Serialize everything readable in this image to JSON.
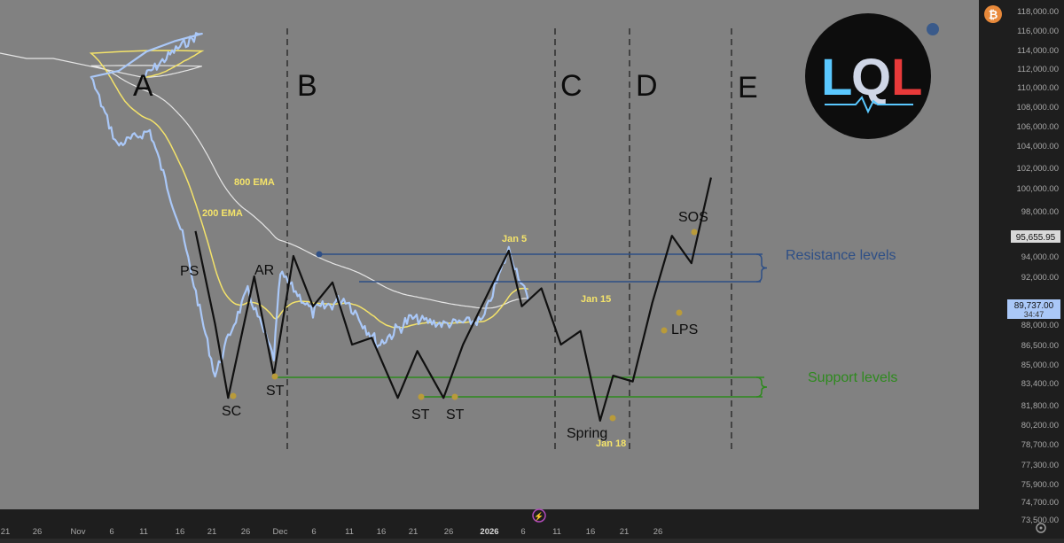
{
  "colors": {
    "background": "#818181",
    "price_line": "#aac8f8",
    "ema_200": "#f4e36a",
    "ema_800": "#e6e6e6",
    "schematic": "#101010",
    "resistance": "#2e4f86",
    "support": "#2e8a1e",
    "event_dot": "#b99b3a",
    "axis_bg": "#1e1e1e",
    "axis_text": "#a8a8a8",
    "logo_blue": "#5ac8ff",
    "logo_red": "#e83a3a"
  },
  "logo": {
    "text_left": "L",
    "text_mid": "Q",
    "text_right": "L"
  },
  "chart_data": {
    "type": "line",
    "y_axis": {
      "ticks": [
        "118,000.00",
        "116,000.00",
        "114,000.00",
        "112,000.00",
        "110,000.00",
        "108,000.00",
        "106,000.00",
        "104,000.00",
        "102,000.00",
        "100,000.00",
        "98,000.00",
        "96,000.00",
        "94,000.00",
        "92,000.00",
        "88,000.00",
        "86,500.00",
        "85,000.00",
        "83,400.00",
        "81,800.00",
        "80,200.00",
        "78,700.00",
        "77,300.00",
        "75,900.00",
        "74,700.00",
        "73,500.00"
      ],
      "current_price": "95,655.95",
      "marker_price": "89,737.00",
      "marker_countdown": "34:47",
      "scale": "log"
    },
    "x_axis": {
      "ticks": [
        "21",
        "26",
        "Nov",
        "6",
        "11",
        "16",
        "21",
        "26",
        "Dec",
        "6",
        "11",
        "16",
        "21",
        "26",
        "2026",
        "6",
        "11",
        "16",
        "21",
        "26"
      ]
    },
    "phases": [
      "A",
      "B",
      "C",
      "D",
      "E"
    ],
    "ema_labels": [
      "800 EMA",
      "200 EMA"
    ],
    "events": [
      "PS",
      "AR",
      "SC",
      "ST",
      "ST",
      "ST",
      "Spring",
      "LPS",
      "SOS"
    ],
    "dates": [
      "Jan 5",
      "Jan 15",
      "Jan 18"
    ],
    "levels": {
      "resistance": "Resistance levels",
      "support": "Support levels"
    },
    "price_series": {
      "dates": [
        "Oct 21",
        "Oct 26",
        "Oct 30",
        "Nov 2",
        "Nov 6",
        "Nov 11",
        "Nov 16",
        "Nov 21",
        "Nov 23",
        "Nov 26",
        "Nov 30",
        "Dec 1",
        "Dec 6",
        "Dec 11",
        "Dec 16",
        "Dec 21",
        "Dec 26",
        "Jan 1",
        "Jan 5",
        "Jan 8"
      ],
      "values": [
        111000,
        114000,
        115800,
        111000,
        104000,
        105500,
        96000,
        84000,
        87000,
        90800,
        85500,
        92300,
        89000,
        90200,
        86500,
        88500,
        88000,
        88300,
        94600,
        90000
      ]
    },
    "schematic_path": {
      "points": [
        "Nov 18",
        "Nov 21",
        "Nov 23",
        "Nov 27",
        "Nov 30",
        "Dec 3",
        "Dec 6",
        "Dec 9",
        "Dec 12",
        "Dec 15",
        "Dec 19",
        "Dec 22",
        "Dec 26",
        "Dec 29",
        "Jan 5",
        "Jan 7",
        "Jan 10",
        "Jan 13",
        "Jan 16",
        "Jan 19",
        "Jan 21",
        "Jan 24",
        "Jan 27",
        "Jan 30",
        "Feb 2",
        "Feb 5"
      ],
      "values": [
        96300,
        88000,
        82300,
        92000,
        84000,
        94000,
        89500,
        91500,
        86500,
        87000,
        82300,
        86000,
        82300,
        86500,
        94500,
        89500,
        91000,
        86500,
        87500,
        80500,
        84000,
        83500,
        89800,
        95900,
        93300,
        101000
      ]
    }
  }
}
